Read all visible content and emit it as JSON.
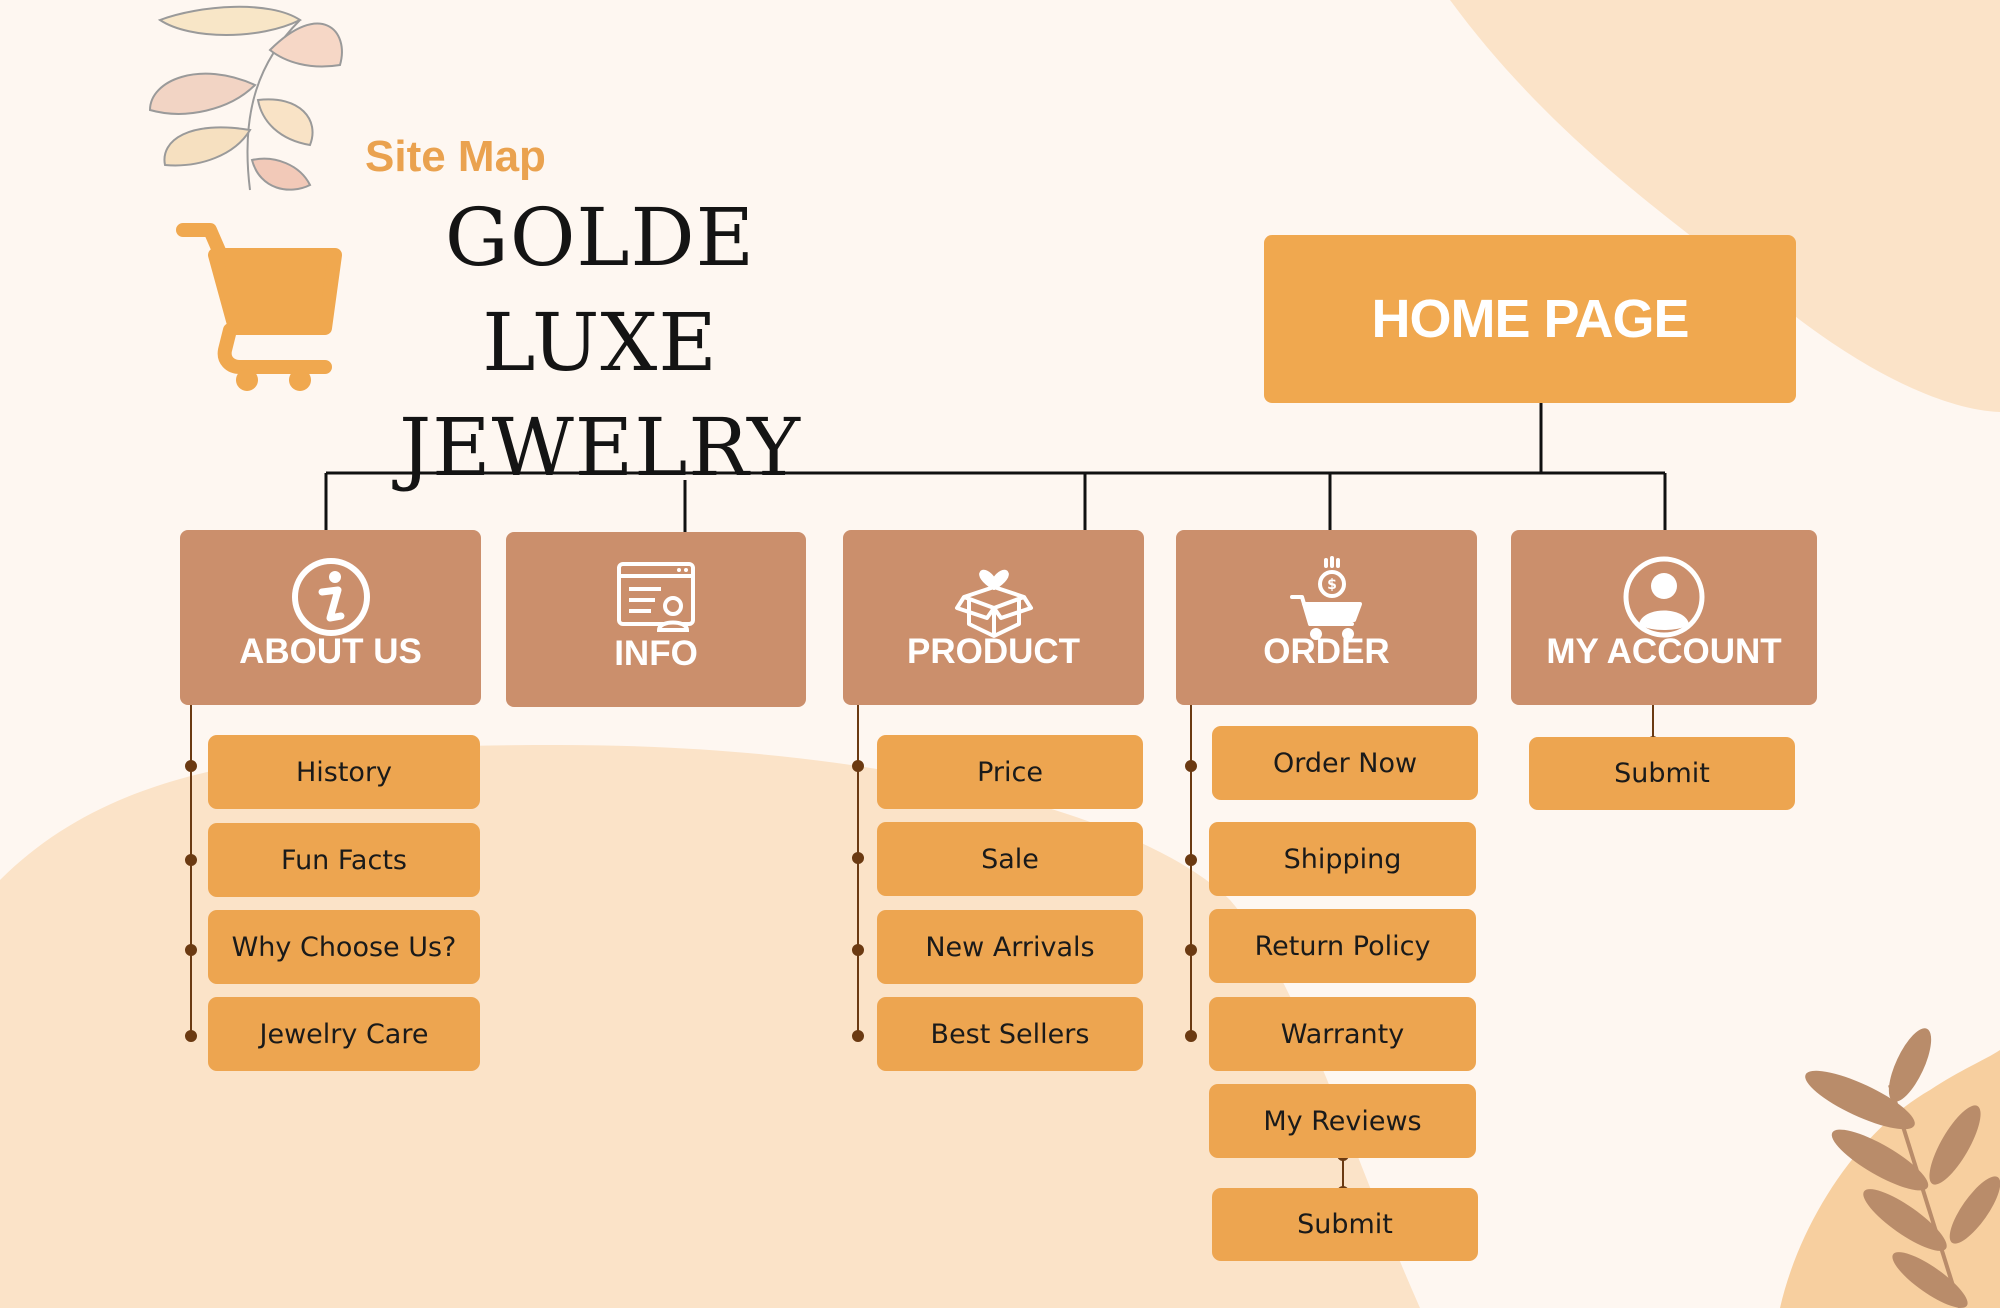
{
  "header": {
    "subtitle": "Site Map",
    "title_line1": "GOLDE LUXE",
    "title_line2": "JEWELRY"
  },
  "home": {
    "label": "HOME PAGE"
  },
  "categories": [
    {
      "label": "ABOUT US",
      "icon": "info-icon",
      "items": [
        "History",
        "Fun Facts",
        "Why Choose Us?",
        "Jewelry Care"
      ]
    },
    {
      "label": "INFO",
      "icon": "web-profile-icon",
      "items": []
    },
    {
      "label": "PRODUCT",
      "icon": "gift-box-icon",
      "items": [
        "Price",
        "Sale",
        "New Arrivals",
        "Best Sellers"
      ]
    },
    {
      "label": "ORDER",
      "icon": "cart-money-icon",
      "items": [
        "Order Now",
        "Shipping",
        "Return Policy",
        "Warranty",
        "My Reviews"
      ],
      "sub": "Submit"
    },
    {
      "label": "MY ACCOUNT",
      "icon": "user-icon",
      "items": [
        "Submit"
      ]
    }
  ],
  "colors": {
    "background": "#fef7f1",
    "accent": "#f0a84f",
    "category_box": "#cb8f6c",
    "item_box": "#eda550",
    "blob": "#fbe3c8",
    "connector": "#111111",
    "dot": "#6b3a12"
  },
  "logo_icon": "shopping-cart-icon"
}
